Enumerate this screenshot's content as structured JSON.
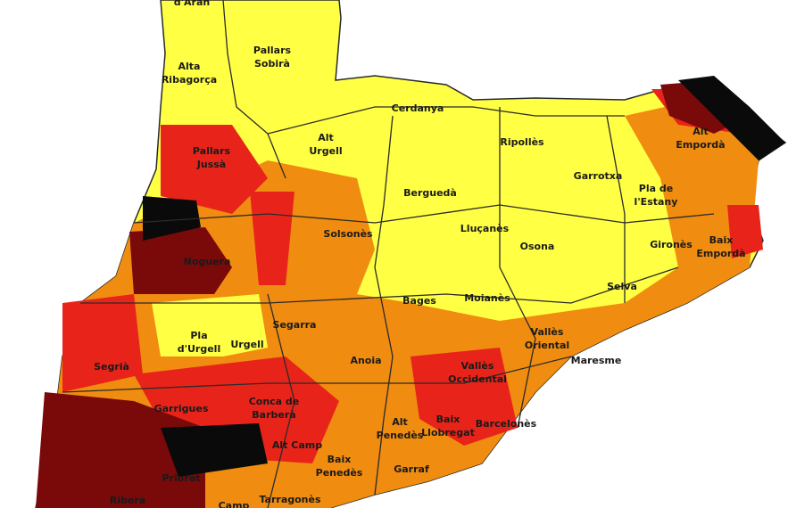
{
  "regions": [
    {
      "lines": [
        "d'Aran"
      ]
    },
    {
      "lines": [
        "Pallars",
        "Sobirà"
      ]
    },
    {
      "lines": [
        "Alta",
        "Ribagorça"
      ]
    },
    {
      "lines": [
        "Cerdanya"
      ]
    },
    {
      "lines": [
        "Alt",
        "Urgell"
      ]
    },
    {
      "lines": [
        "Ripollès"
      ]
    },
    {
      "lines": [
        "Pallars",
        "Jussà"
      ]
    },
    {
      "lines": [
        "Alt",
        "Empordà"
      ]
    },
    {
      "lines": [
        "Garrotxa"
      ]
    },
    {
      "lines": [
        "Berguedà"
      ]
    },
    {
      "lines": [
        "Pla de",
        "l'Estany"
      ]
    },
    {
      "lines": [
        "Lluçanès"
      ]
    },
    {
      "lines": [
        "Solsonès"
      ]
    },
    {
      "lines": [
        "Osona"
      ]
    },
    {
      "lines": [
        "Gironès"
      ]
    },
    {
      "lines": [
        "Baix",
        "Empordà"
      ]
    },
    {
      "lines": [
        "Noguera"
      ]
    },
    {
      "lines": [
        "Selva"
      ]
    },
    {
      "lines": [
        "Bages"
      ]
    },
    {
      "lines": [
        "Moianès"
      ]
    },
    {
      "lines": [
        "Pla",
        "d'Urgell"
      ]
    },
    {
      "lines": [
        "Urgell"
      ]
    },
    {
      "lines": [
        "Segarra"
      ]
    },
    {
      "lines": [
        "Vallès",
        "Oriental"
      ]
    },
    {
      "lines": [
        "Segrià"
      ]
    },
    {
      "lines": [
        "Anoia"
      ]
    },
    {
      "lines": [
        "Maresme"
      ]
    },
    {
      "lines": [
        "Vallès",
        "Occidental"
      ]
    },
    {
      "lines": [
        "Garrigues"
      ]
    },
    {
      "lines": [
        "Conca de",
        "Barberà"
      ]
    },
    {
      "lines": [
        "Alt",
        "Penedès"
      ]
    },
    {
      "lines": [
        "Baix",
        "Llobregat"
      ]
    },
    {
      "lines": [
        "Barcelonès"
      ]
    },
    {
      "lines": [
        "Alt Camp"
      ]
    },
    {
      "lines": [
        "Baix",
        "Penedès"
      ]
    },
    {
      "lines": [
        "Garraf"
      ]
    },
    {
      "lines": [
        "Priorat"
      ]
    },
    {
      "lines": [
        "Ribera"
      ]
    },
    {
      "lines": [
        "Tarragonès"
      ]
    },
    {
      "lines": [
        "Camp"
      ]
    }
  ]
}
